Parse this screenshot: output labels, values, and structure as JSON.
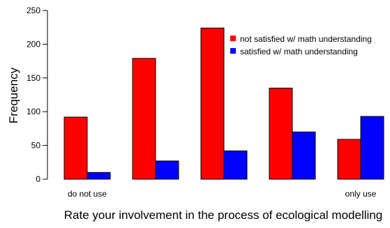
{
  "chart_data": {
    "type": "bar",
    "categories": [
      "do not use",
      "",
      "",
      "",
      "only use"
    ],
    "series": [
      {
        "name": "not satisfied w/ math understanding",
        "color": "#ff0000",
        "values": [
          92,
          179,
          224,
          135,
          59
        ]
      },
      {
        "name": "satisfied w/ math understanding",
        "color": "#0000ff",
        "values": [
          10,
          27,
          42,
          70,
          93
        ]
      }
    ],
    "title": "",
    "xlabel": "Rate your involvement in the process of ecological modelling",
    "ylabel": "Frequency",
    "ylim": [
      0,
      250
    ],
    "yticks": [
      0,
      50,
      100,
      150,
      200,
      250
    ],
    "grid": false,
    "legend_position": "top-right"
  }
}
